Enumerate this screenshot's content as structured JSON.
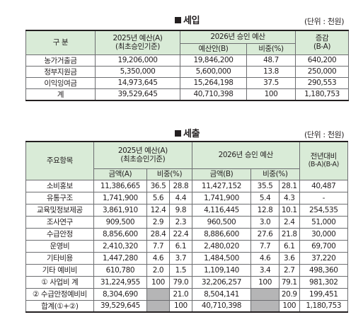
{
  "revenue": {
    "title": "세입",
    "unit": "(단위 : 천원)",
    "headers": {
      "category": "구 분",
      "budget2025": "2025년 예산(A)",
      "budget2025_sub": "(최초승인기준)",
      "approved2026": "2026년 승인 예산",
      "draft": "예산안(B)",
      "ratio": "비중(%)",
      "change": "증감",
      "change_sub": "(B-A)"
    },
    "rows": [
      {
        "label": "농가거출금",
        "a": "19,206,000",
        "b": "19,846,200",
        "ratio": "48.7",
        "diff": "640,200"
      },
      {
        "label": "정부지원금",
        "a": "5,350,000",
        "b": "5,600,000",
        "ratio": "13.8",
        "diff": "250,000"
      },
      {
        "label": "이익잉여금",
        "a": "14,973,645",
        "b": "15,264,198",
        "ratio": "37.5",
        "diff": "290,553"
      },
      {
        "label": "계",
        "a": "39,529,645",
        "b": "40,710,398",
        "ratio": "100",
        "diff": "1,180,753"
      }
    ]
  },
  "expenditure": {
    "title": "세출",
    "unit": "(단위 : 천원)",
    "headers": {
      "item": "주요항목",
      "budget2025": "2025년 예산(A)",
      "budget2025_sub": "(최초승인기준)",
      "approved2026": "2026년 승인 예산",
      "yoy": "전년대비",
      "yoy_sub": "(B-A)(B-A)",
      "amount_a": "금액(A)",
      "ratio_a": "비중(%)",
      "amount_b": "금액(B)",
      "ratio_b": "비중(%)"
    },
    "rows": [
      {
        "label": "소비홍보",
        "a": "11,386,665",
        "a1": "36.5",
        "a2": "28.8",
        "b": "11,427,152",
        "b1": "35.5",
        "b2": "28.1",
        "diff": "40,487"
      },
      {
        "label": "유통구조",
        "a": "1,741,900",
        "a1": "5.6",
        "a2": "4.4",
        "b": "1,741,900",
        "b1": "5.4",
        "b2": "4.3",
        "diff": "-"
      },
      {
        "label": "교육및정보제공",
        "a": "3,861,910",
        "a1": "12.4",
        "a2": "9.8",
        "b": "4,116,445",
        "b1": "12.8",
        "b2": "10.1",
        "diff": "254,535"
      },
      {
        "label": "조사연구",
        "a": "909,500",
        "a1": "2.9",
        "a2": "2.3",
        "b": "960,500",
        "b1": "3.0",
        "b2": "2.4",
        "diff": "51,000"
      },
      {
        "label": "수급안정",
        "a": "8,856,600",
        "a1": "28.4",
        "a2": "22.4",
        "b": "8,886,600",
        "b1": "27.6",
        "b2": "21.8",
        "diff": "30,000"
      },
      {
        "label": "운영비",
        "a": "2,410,320",
        "a1": "7.7",
        "a2": "6.1",
        "b": "2,480,020",
        "b1": "7.7",
        "b2": "6.1",
        "diff": "69,700"
      },
      {
        "label": "기타비용",
        "a": "1,447,280",
        "a1": "4.6",
        "a2": "3.7",
        "b": "1,484,500",
        "b1": "4.6",
        "b2": "3.6",
        "diff": "37,220"
      },
      {
        "label": "기타 예비비",
        "a": "610,780",
        "a1": "2.0",
        "a2": "1.5",
        "b": "1,109,140",
        "b1": "3.4",
        "b2": "2.7",
        "diff": "498,360"
      },
      {
        "label": "① 사업비 계",
        "a": "31,224,955",
        "a1": "100",
        "a2": "79.0",
        "b": "32,206,257",
        "b1": "100",
        "b2": "79.1",
        "diff": "981,302"
      },
      {
        "label": "② 수급안정예비비",
        "a": "8,304,690",
        "a1": "",
        "a2": "21.0",
        "b": "8,504,141",
        "b1": "",
        "b2": "20.9",
        "diff": "199,451"
      },
      {
        "label": "합계(①+②)",
        "a": "39,529,645",
        "a1": "",
        "a2": "100",
        "b": "40,710,398",
        "b1": "",
        "b2": "100",
        "diff": "1,180,753"
      }
    ]
  }
}
